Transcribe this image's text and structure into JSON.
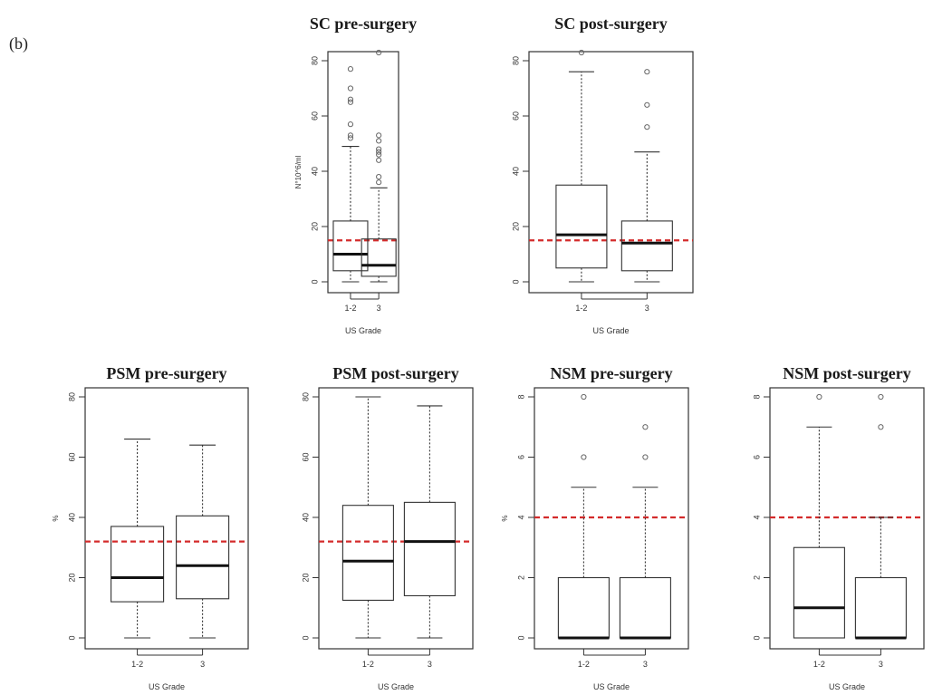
{
  "panel_label": "(b)",
  "chart_data": [
    {
      "type": "boxplot",
      "title": "SC pre-surgery",
      "xlabel": "US Grade",
      "ylabel": "N°10^6/ml",
      "ylim": [
        0,
        80
      ],
      "yticks": [
        0,
        20,
        40,
        60,
        80
      ],
      "threshold": 15,
      "categories": [
        "1-2",
        "3"
      ],
      "boxes": [
        {
          "min": 0,
          "q1": 4,
          "median": 10,
          "q3": 22,
          "max": 49,
          "outliers": [
            52,
            53,
            57,
            65,
            66,
            70,
            77
          ]
        },
        {
          "min": 0,
          "q1": 2,
          "median": 6,
          "q3": 15.5,
          "max": 34,
          "outliers": [
            36,
            38,
            44,
            46,
            47,
            48,
            51,
            53,
            83
          ]
        }
      ]
    },
    {
      "type": "boxplot",
      "title": "SC post-surgery",
      "xlabel": "US Grade",
      "ylabel": "",
      "ylim": [
        0,
        80
      ],
      "yticks": [
        0,
        20,
        40,
        60,
        80
      ],
      "threshold": 15,
      "categories": [
        "1-2",
        "3"
      ],
      "boxes": [
        {
          "min": 0,
          "q1": 5,
          "median": 17,
          "q3": 35,
          "max": 76,
          "outliers": [
            83
          ]
        },
        {
          "min": 0,
          "q1": 4,
          "median": 14,
          "q3": 22,
          "max": 47,
          "outliers": [
            56,
            64,
            76
          ]
        }
      ]
    },
    {
      "type": "boxplot",
      "title": "PSM pre-surgery",
      "xlabel": "US Grade",
      "ylabel": "%",
      "ylim": [
        0,
        80
      ],
      "yticks": [
        0,
        20,
        40,
        60,
        80
      ],
      "threshold": 32,
      "categories": [
        "1-2",
        "3"
      ],
      "boxes": [
        {
          "min": 0,
          "q1": 12,
          "median": 20,
          "q3": 37,
          "max": 66,
          "outliers": []
        },
        {
          "min": 0,
          "q1": 13,
          "median": 24,
          "q3": 40.5,
          "max": 64,
          "outliers": []
        }
      ]
    },
    {
      "type": "boxplot",
      "title": "PSM post-surgery",
      "xlabel": "US Grade",
      "ylabel": "",
      "ylim": [
        0,
        80
      ],
      "yticks": [
        0,
        20,
        40,
        60,
        80
      ],
      "threshold": 32,
      "categories": [
        "1-2",
        "3"
      ],
      "boxes": [
        {
          "min": 0,
          "q1": 12.5,
          "median": 25.5,
          "q3": 44,
          "max": 80,
          "outliers": []
        },
        {
          "min": 0,
          "q1": 14,
          "median": 32,
          "q3": 45,
          "max": 77,
          "outliers": []
        }
      ]
    },
    {
      "type": "boxplot",
      "title": "NSM pre-surgery",
      "xlabel": "US Grade",
      "ylabel": "%",
      "ylim": [
        0,
        8
      ],
      "yticks": [
        0,
        2,
        4,
        6,
        8
      ],
      "threshold": 4,
      "categories": [
        "1-2",
        "3"
      ],
      "boxes": [
        {
          "min": 0,
          "q1": 0,
          "median": 0,
          "q3": 2,
          "max": 5,
          "outliers": [
            6,
            8
          ]
        },
        {
          "min": 0,
          "q1": 0,
          "median": 0,
          "q3": 2,
          "max": 5,
          "outliers": [
            6,
            7
          ]
        }
      ]
    },
    {
      "type": "boxplot",
      "title": "NSM post-surgery",
      "xlabel": "US Grade",
      "ylabel": "",
      "ylim": [
        0,
        8
      ],
      "yticks": [
        0,
        2,
        4,
        6,
        8
      ],
      "threshold": 4,
      "categories": [
        "1-2",
        "3"
      ],
      "boxes": [
        {
          "min": 0,
          "q1": 0,
          "median": 1,
          "q3": 3,
          "max": 7,
          "outliers": [
            8
          ]
        },
        {
          "min": 0,
          "q1": 0,
          "median": 0,
          "q3": 2,
          "max": 4,
          "outliers": [
            7,
            8
          ]
        }
      ]
    }
  ]
}
